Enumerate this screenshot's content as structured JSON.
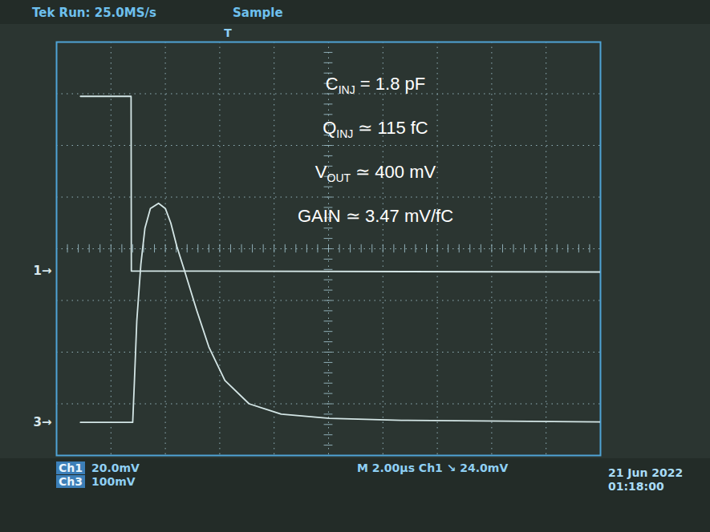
{
  "chart_data": {
    "type": "line",
    "title": "Tek Run: 25.0MS/s",
    "subtitle": "Sample",
    "trigger_label": "T",
    "trigger_position": 6.3,
    "xlim": [
      0,
      20
    ],
    "xticks": [
      0,
      2,
      4,
      6,
      8,
      10,
      12,
      14,
      16,
      18,
      20
    ],
    "ylim": [
      -4,
      4
    ],
    "yticks": [
      -4,
      -3,
      -2,
      -1,
      0,
      1,
      2,
      3,
      4
    ],
    "grid": true,
    "tick_labels": false,
    "series": [
      {
        "name": "Ch1",
        "color": "#d4e6e6",
        "scale_label": "20.0mV",
        "x": [
          0.88,
          2.74,
          2.75,
          20
        ],
        "values": [
          2.95,
          2.95,
          -0.43,
          -0.45
        ]
      },
      {
        "name": "Ch3",
        "color": "#d4e6e6",
        "scale_label": "100mV",
        "x": [
          0.88,
          2.8,
          2.86,
          2.95,
          3.1,
          3.25,
          3.45,
          3.75,
          4.0,
          4.2,
          4.42,
          4.72,
          5.16,
          5.6,
          6.19,
          7.08,
          8.26,
          10.03,
          12.68,
          15.63,
          20
        ],
        "values": [
          -3.36,
          -3.36,
          -2.6,
          -1.4,
          -0.3,
          0.4,
          0.78,
          0.88,
          0.78,
          0.5,
          0.05,
          -0.45,
          -1.2,
          -1.9,
          -2.55,
          -3.0,
          -3.2,
          -3.28,
          -3.32,
          -3.33,
          -3.35
        ]
      }
    ],
    "channel_markers": [
      {
        "label": "1→",
        "value": -0.43
      },
      {
        "label": "3→",
        "value": -3.36
      }
    ],
    "annotations": [
      {
        "symbol": "C",
        "subscript": "INJ",
        "text": " = 1.8 pF"
      },
      {
        "symbol": "Q",
        "subscript": "INJ",
        "text": " ≃ 115 fC"
      },
      {
        "symbol": "V",
        "subscript": "OUT",
        "text": " ≃ 400 mV"
      },
      {
        "symbol": "GAIN",
        "subscript": "",
        "text": " ≃ 3.47 mV/fC"
      }
    ],
    "timebase": "M 2.00µs",
    "trigger": "Ch1 ↘ 24.0mV",
    "date": "21 Jun 2022",
    "time": "01:18:00"
  }
}
